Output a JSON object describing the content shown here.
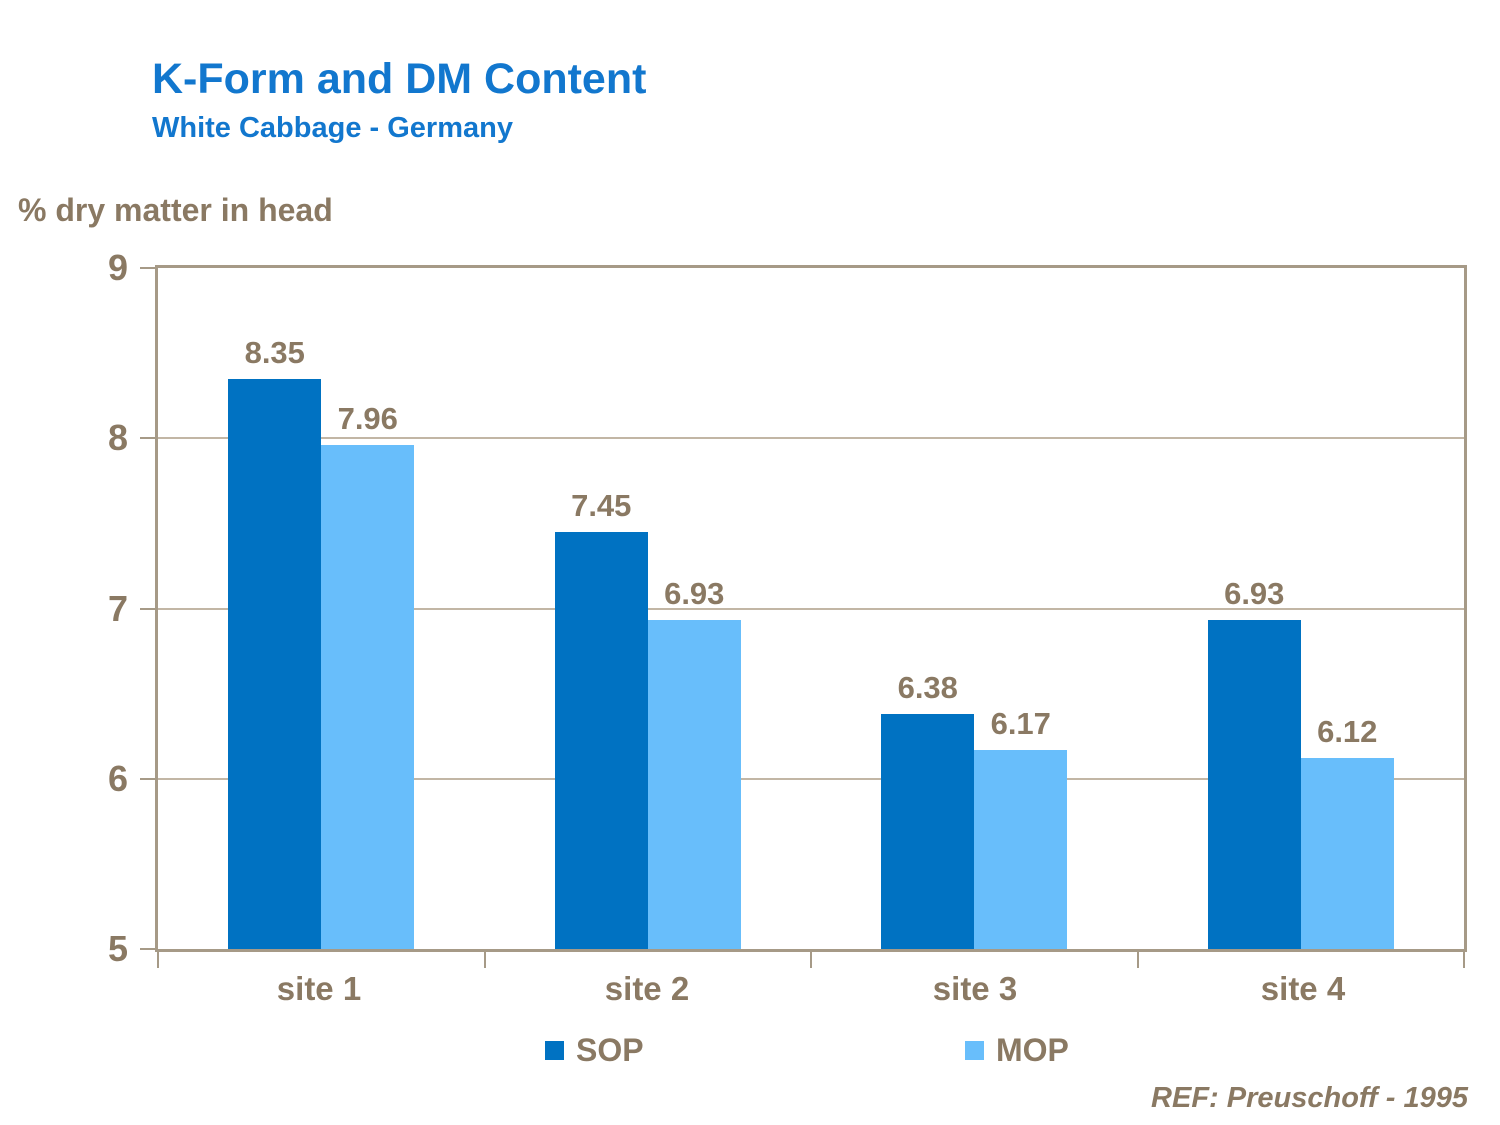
{
  "header": {
    "title": "K-Form and DM Content",
    "subtitle": "White Cabbage - Germany"
  },
  "y_axis_title": "% dry matter in head",
  "footer": {
    "ref": "REF: Preuschoff - 1995"
  },
  "colors": {
    "title_blue": "#1277CE",
    "text_brown": "#8A7963",
    "axis_tan": "#A69A87",
    "grid_tan": "#C2B6A5",
    "sop_blue": "#0072C2",
    "mop_blue": "#68BEFB"
  },
  "chart_data": {
    "type": "bar",
    "title": "K-Form and DM Content",
    "subtitle": "White Cabbage - Germany",
    "ylabel": "% dry matter in head",
    "xlabel": "",
    "categories": [
      "site 1",
      "site 2",
      "site 3",
      "site 4"
    ],
    "series": [
      {
        "name": "SOP",
        "color": "#0072C2",
        "values": [
          8.35,
          7.45,
          6.38,
          6.93
        ]
      },
      {
        "name": "MOP",
        "color": "#68BEFB",
        "values": [
          7.96,
          6.93,
          6.17,
          6.12
        ]
      }
    ],
    "ylim": [
      5,
      9
    ],
    "yticks": [
      5,
      6,
      7,
      8,
      9
    ],
    "grid": "horizontal",
    "legend_position": "bottom",
    "annotation": "REF: Preuschoff - 1995"
  }
}
